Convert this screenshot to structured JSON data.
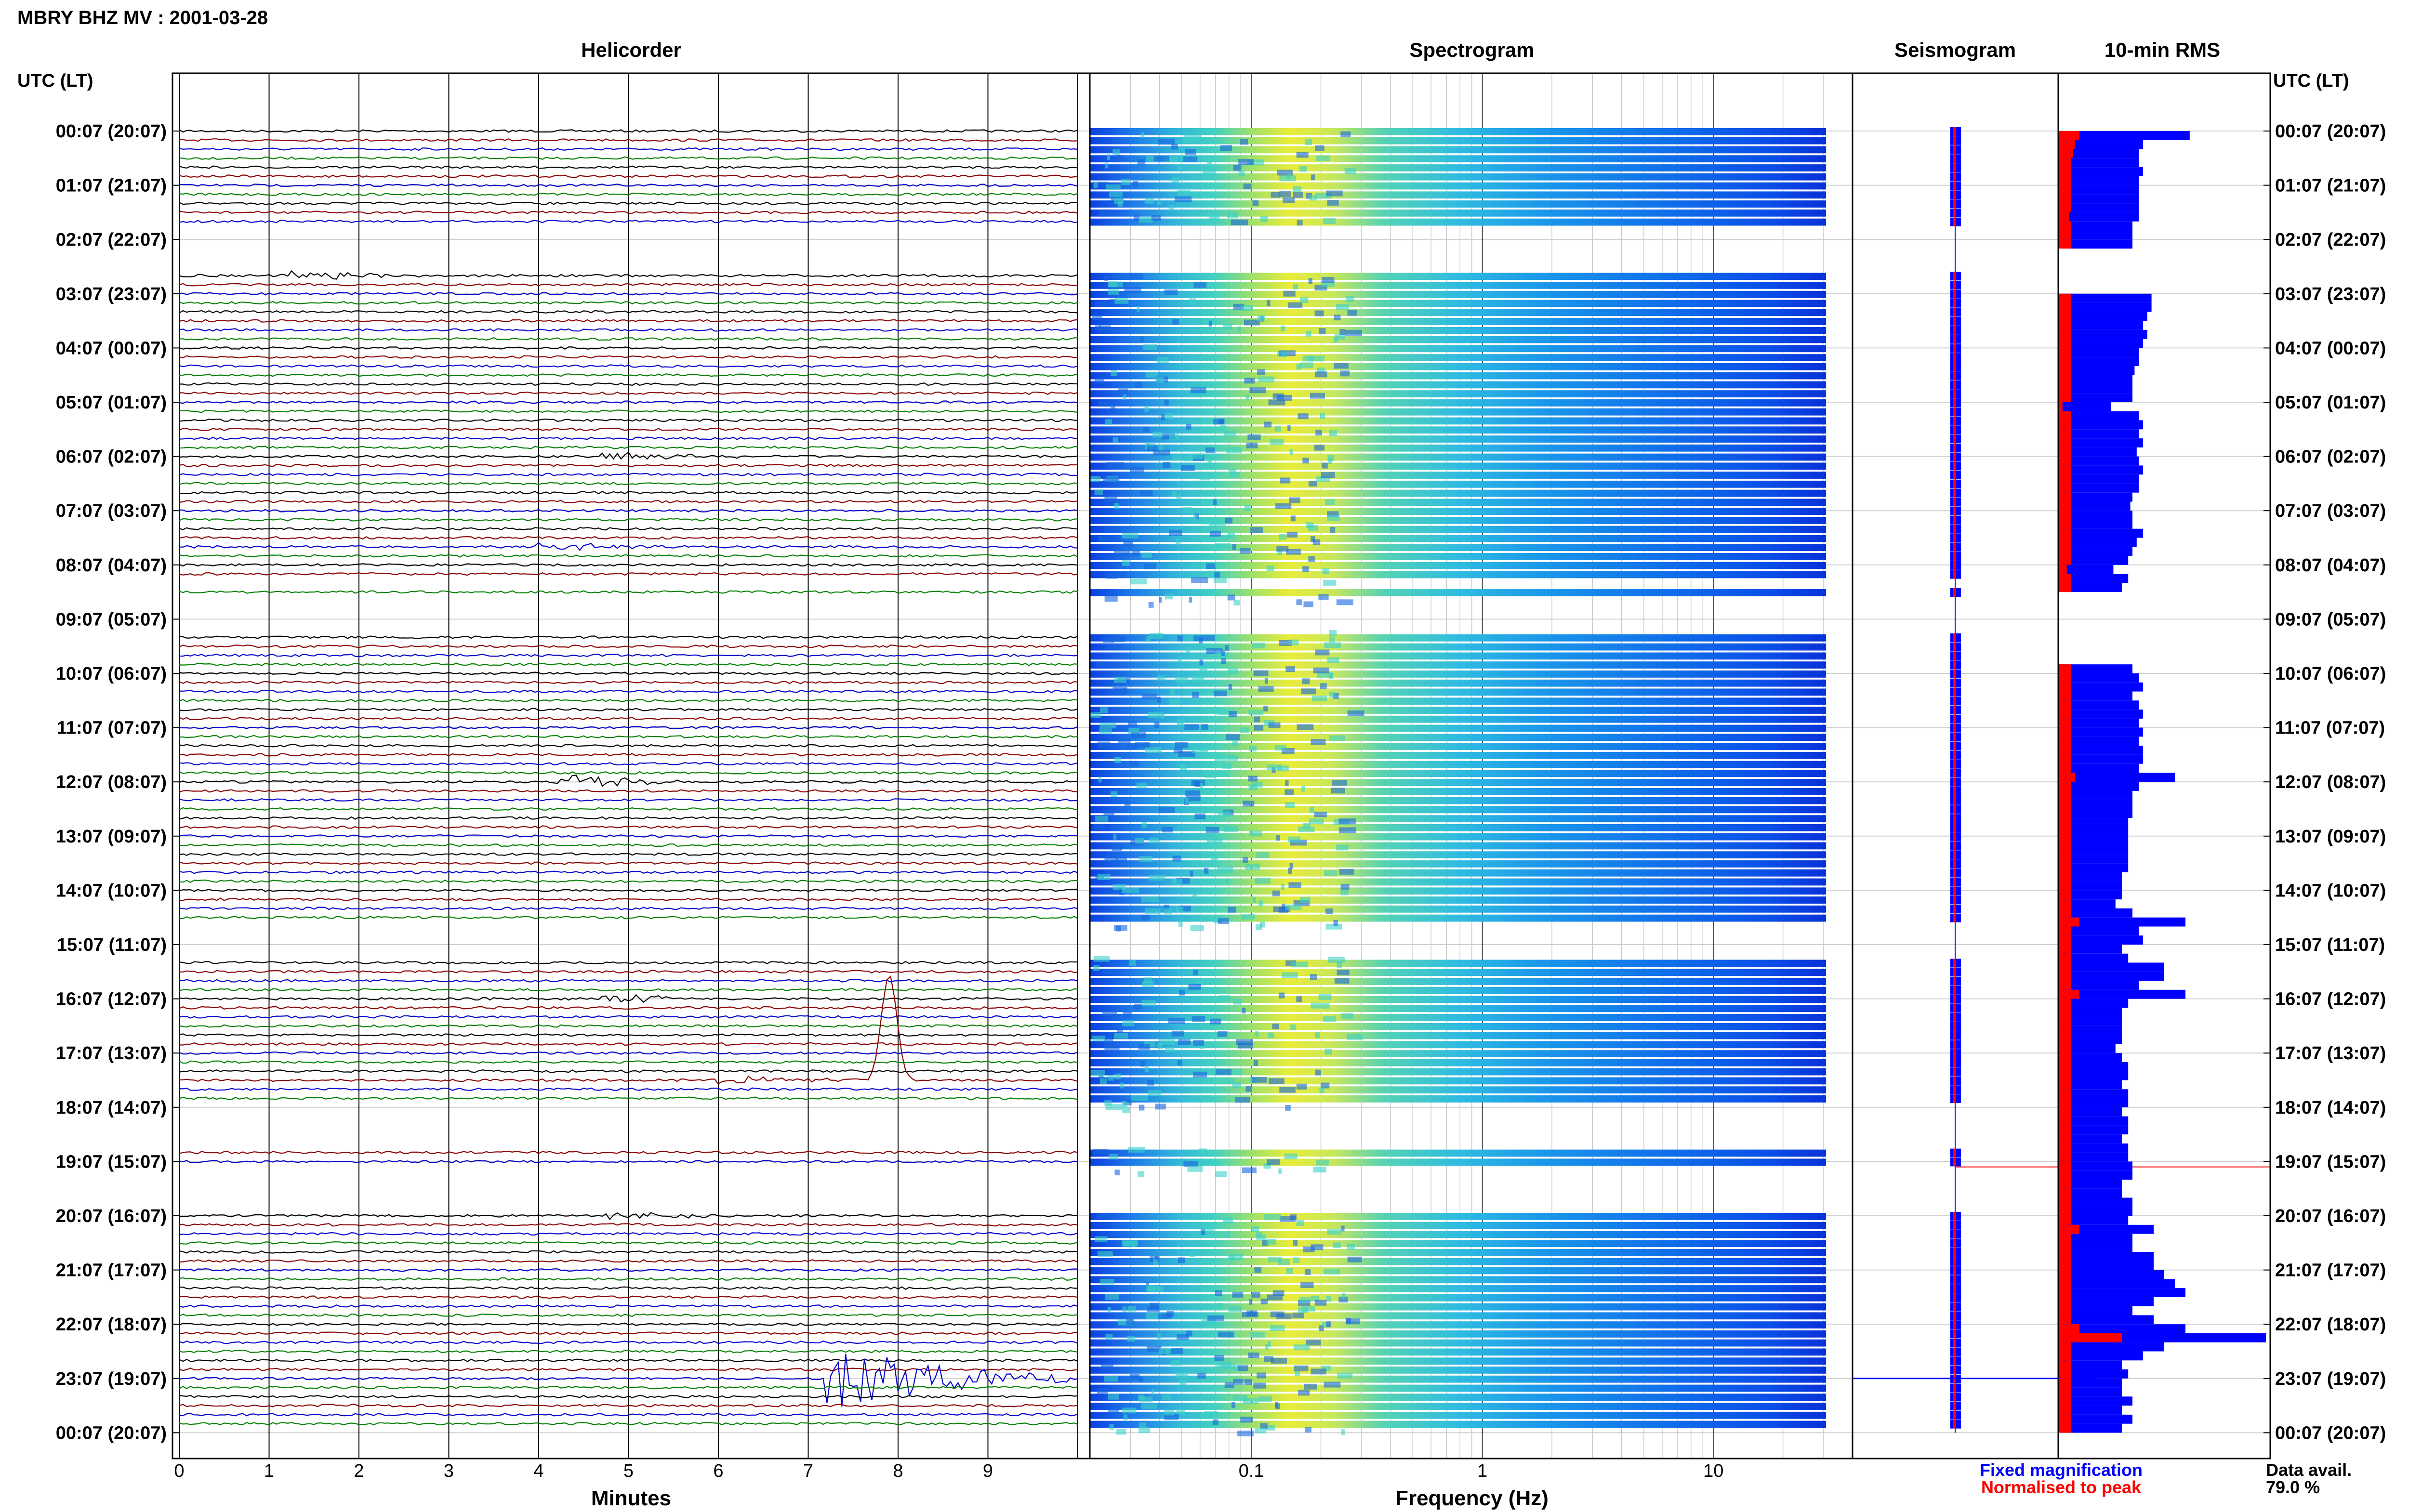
{
  "title": "MBRY BHZ MV : 2001-03-28",
  "utc_header": "UTC (LT)",
  "panels": {
    "helicorder": "Helicorder",
    "spectrogram": "Spectrogram",
    "seismogram": "Seismogram",
    "rms": "10-min RMS"
  },
  "chart_data": {
    "type": "heatmap",
    "time_labels": [
      "00:07 (20:07)",
      "01:07 (21:07)",
      "02:07 (22:07)",
      "03:07 (23:07)",
      "04:07 (00:07)",
      "05:07 (01:07)",
      "06:07 (02:07)",
      "07:07 (03:07)",
      "08:07 (04:07)",
      "09:07 (05:07)",
      "10:07 (06:07)",
      "11:07 (07:07)",
      "12:07 (08:07)",
      "13:07 (09:07)",
      "14:07 (10:07)",
      "15:07 (11:07)",
      "16:07 (12:07)",
      "17:07 (13:07)",
      "18:07 (14:07)",
      "19:07 (15:07)",
      "20:07 (16:07)",
      "21:07 (17:07)",
      "22:07 (18:07)",
      "23:07 (19:07)",
      "00:07 (20:07)"
    ],
    "helicorder": {
      "xlabel": "Minutes",
      "xticks": [
        "0",
        "1",
        "2",
        "3",
        "4",
        "5",
        "6",
        "7",
        "8",
        "9"
      ],
      "xlim": [
        0,
        10
      ],
      "trace_colors": [
        "#000000",
        "#8b0000",
        "#0000cd",
        "#008000"
      ],
      "rows_per_hour": 6,
      "data_gaps_hours": [
        [
          1.8,
          2.6
        ],
        [
          8.3,
          8.5
        ],
        [
          8.7,
          9.2
        ],
        [
          14.7,
          15.2
        ],
        [
          18.0,
          18.7
        ],
        [
          19.2,
          19.9
        ],
        [
          24.0,
          24.0
        ]
      ],
      "events": [
        {
          "hour": 2.67,
          "minute": 1.5,
          "color": "#000000",
          "amplitude": "small"
        },
        {
          "hour": 5.95,
          "minute": 5.0,
          "color": "#000000",
          "amplitude": "small"
        },
        {
          "hour": 7.68,
          "minute": 4.3,
          "color": "#0000cd",
          "amplitude": "small"
        },
        {
          "hour": 12.0,
          "minute": 4.5,
          "color": "#000000",
          "amplitude": "medium"
        },
        {
          "hour": 15.95,
          "minute": 5.0,
          "color": "#008000",
          "amplitude": "small"
        },
        {
          "hour": 17.45,
          "minute": 6.2,
          "color": "#8b0000",
          "amplitude": "small"
        },
        {
          "hour": 17.5,
          "minute": 7.7,
          "color": "#000000",
          "amplitude": "pulse"
        },
        {
          "hour": 20.0,
          "minute": 5.0,
          "color": "#000000",
          "amplitude": "small"
        },
        {
          "hour": 23.0,
          "minute": 7.5,
          "color": "#8b0000",
          "amplitude": "large"
        }
      ]
    },
    "spectrogram": {
      "xlabel": "Frequency (Hz)",
      "xscale": "log",
      "xlim": [
        0.02,
        40
      ],
      "xticks": [
        "0.1",
        "1",
        "10"
      ],
      "colormap": "jet",
      "peak_band_hz": [
        0.15,
        0.5
      ]
    },
    "seismogram": {
      "legend": [
        "Fixed magnification",
        "Normalised to peak"
      ],
      "colors": [
        "#0000ff",
        "#ff0000"
      ]
    },
    "rms": {
      "blue_relative": [
        0.62,
        0.4,
        0.38,
        0.38,
        0.4,
        0.38,
        0.38,
        0.38,
        0.38,
        0.38,
        0.35,
        0.35,
        0.35,
        0,
        0,
        0,
        0,
        0,
        0.44,
        0.44,
        0.42,
        0.4,
        0.42,
        0.4,
        0.38,
        0.38,
        0.36,
        0.35,
        0.35,
        0.35,
        0.25,
        0.38,
        0.4,
        0.38,
        0.4,
        0.37,
        0.38,
        0.4,
        0.38,
        0.38,
        0.35,
        0.34,
        0.35,
        0.35,
        0.4,
        0.37,
        0.35,
        0.33,
        0.26,
        0.33,
        0.3,
        0,
        0,
        0,
        0,
        0,
        0,
        0,
        0,
        0.35,
        0.38,
        0.4,
        0.35,
        0.38,
        0.4,
        0.38,
        0.4,
        0.38,
        0.4,
        0.4,
        0.38,
        0.55,
        0.38,
        0.35,
        0.35,
        0.35,
        0.33,
        0.33,
        0.33,
        0.33,
        0.33,
        0.33,
        0.3,
        0.3,
        0.3,
        0.27,
        0.35,
        0.6,
        0.38,
        0.4,
        0.3,
        0.33,
        0.5,
        0.5,
        0.38,
        0.6,
        0.33,
        0.3,
        0.3,
        0.3,
        0.3,
        0.27,
        0.3,
        0.33,
        0.33,
        0.3,
        0.33,
        0.33,
        0.3,
        0.33,
        0.33,
        0.3,
        0.33,
        0.33,
        0.35,
        0.35,
        0.3,
        0.3,
        0.35,
        0.35,
        0.33,
        0.45,
        0.35,
        0.35,
        0.45,
        0.45,
        0.5,
        0.55,
        0.6,
        0.45,
        0.35,
        0.45,
        0.6,
        0.98,
        0.5,
        0.4,
        0.3,
        0.33,
        0.3,
        0.3,
        0.35,
        0.3,
        0.35,
        0.3
      ],
      "red_relative": [
        0.1,
        0.08,
        0.07,
        0.06,
        0.06,
        0.06,
        0.06,
        0.06,
        0.06,
        0.05,
        0.06,
        0.06,
        0.06,
        0,
        0,
        0,
        0,
        0,
        0.06,
        0.06,
        0.06,
        0.06,
        0.06,
        0.06,
        0.06,
        0.06,
        0.06,
        0.06,
        0.06,
        0.06,
        0.02,
        0.06,
        0.06,
        0.06,
        0.06,
        0.06,
        0.06,
        0.06,
        0.06,
        0.06,
        0.06,
        0.06,
        0.06,
        0.06,
        0.06,
        0.06,
        0.06,
        0.06,
        0.04,
        0.06,
        0.06,
        0,
        0,
        0,
        0,
        0,
        0,
        0,
        0,
        0.06,
        0.06,
        0.06,
        0.06,
        0.06,
        0.06,
        0.06,
        0.06,
        0.06,
        0.06,
        0.06,
        0.06,
        0.08,
        0.06,
        0.06,
        0.06,
        0.06,
        0.06,
        0.06,
        0.06,
        0.06,
        0.06,
        0.06,
        0.06,
        0.06,
        0.06,
        0.06,
        0.06,
        0.1,
        0.06,
        0.06,
        0.06,
        0.06,
        0.06,
        0.06,
        0.06,
        0.1,
        0.06,
        0.06,
        0.06,
        0.06,
        0.06,
        0.06,
        0.06,
        0.06,
        0.06,
        0.06,
        0.06,
        0.06,
        0.06,
        0.06,
        0.06,
        0.06,
        0.06,
        0.06,
        0.06,
        0.06,
        0.06,
        0.06,
        0.06,
        0.06,
        0.06,
        0.1,
        0.06,
        0.06,
        0.06,
        0.06,
        0.06,
        0.06,
        0.06,
        0.06,
        0.06,
        0.06,
        0.1,
        0.3,
        0.06,
        0.06,
        0.06,
        0.06,
        0.06,
        0.06,
        0.06,
        0.06,
        0.06,
        0.06
      ]
    }
  },
  "footer": {
    "data_avail_label": "Data avail.",
    "data_avail_value": "79.0 %"
  }
}
